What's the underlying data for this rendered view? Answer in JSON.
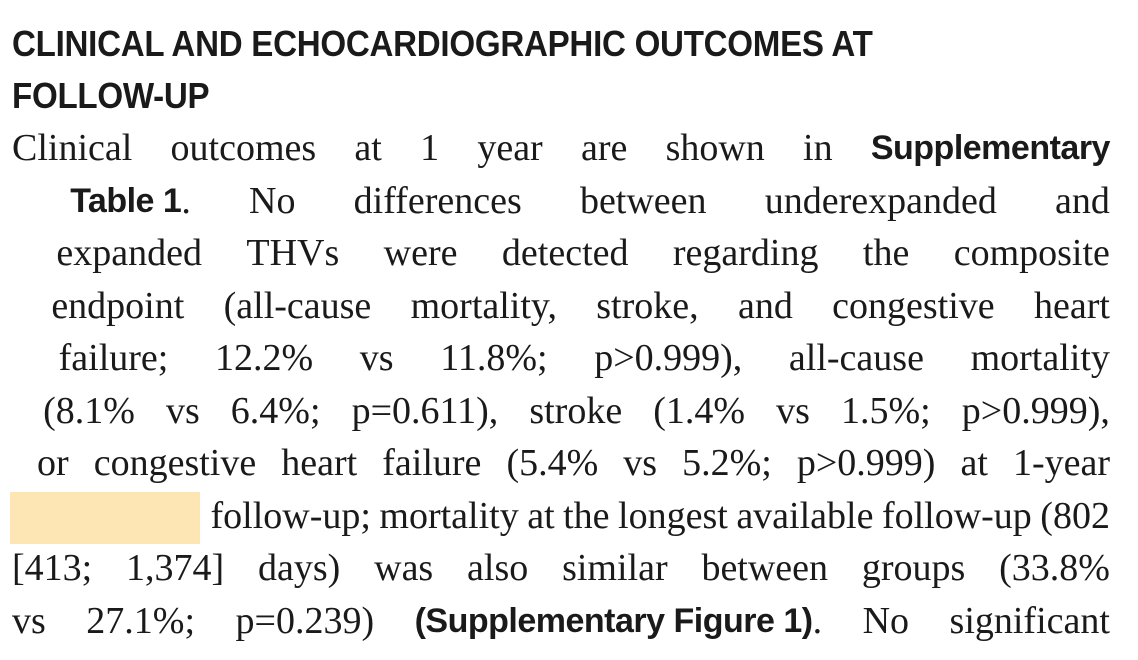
{
  "section": {
    "heading_line1": "CLINICAL AND ECHOCARDIOGRAPHIC OUTCOMES AT",
    "heading_line2": "FOLLOW-UP"
  },
  "paragraph": {
    "lines": [
      [
        "Clinical",
        "outcomes",
        "at",
        "1",
        "year",
        "are",
        "shown",
        "in",
        "Supplementary"
      ],
      [
        "Table 1",
        ".",
        "No",
        "differences",
        "between",
        "underexpanded",
        "and"
      ],
      [
        "expanded",
        "THVs",
        "were",
        "detected",
        "regarding",
        "the",
        "composite"
      ],
      [
        "endpoint",
        "(all-cause",
        "mortality,",
        "stroke,",
        "and",
        "congestive",
        "heart"
      ],
      [
        "failure;",
        "12.2%",
        "vs",
        "11.8%;",
        "p>0.999),",
        "all-cause",
        "mortality"
      ],
      [
        "(8.1%",
        "vs",
        "6.4%;",
        "p=0.611),",
        "stroke",
        "(1.4%",
        "vs",
        "1.5%;",
        "p>0.999),"
      ],
      [
        "or",
        "congestive",
        "heart",
        "failure",
        "(5.4%",
        "vs",
        "5.2%;",
        "p>0.999)",
        "at",
        "1-year"
      ],
      [
        "follow-up;",
        "mortality",
        "at",
        "the",
        "longest",
        "available",
        "follow-up",
        "(802"
      ],
      [
        "[413;",
        "1,374]",
        "days)",
        "was",
        "also",
        "similar",
        "between",
        "groups",
        "(33.8%"
      ],
      [
        "vs",
        "27.1%;",
        "p=0.239)",
        "(Supplementary Figure 1)",
        ".",
        "No",
        "significant"
      ]
    ]
  },
  "colors": {
    "highlight": "#fde5b4",
    "text": "#1a1a1a"
  }
}
